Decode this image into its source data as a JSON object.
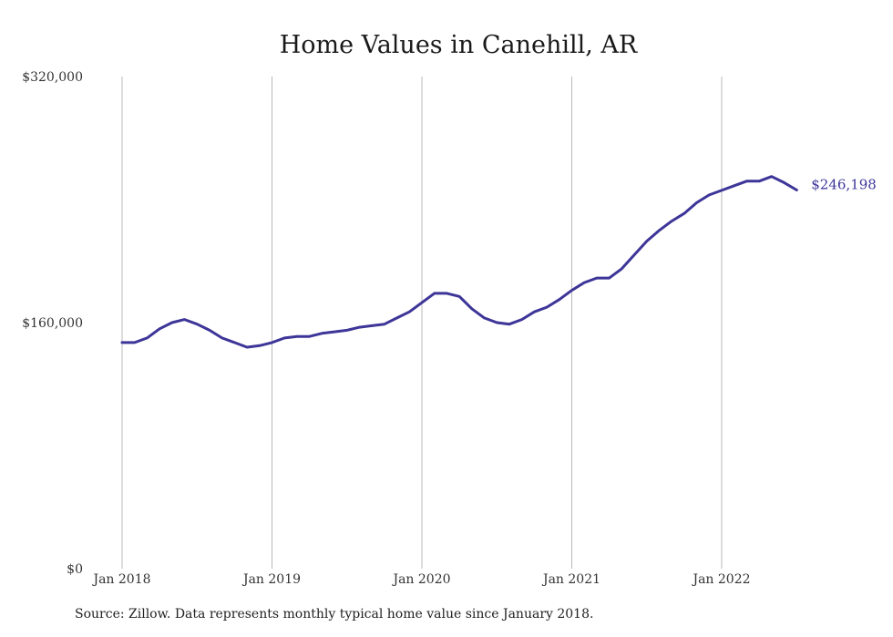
{
  "chart_data": {
    "type": "line",
    "title": "Home Values in Canehill, AR",
    "xlabel": "",
    "ylabel": "",
    "ylim": [
      0,
      320000
    ],
    "y_ticks": [
      {
        "value": 0,
        "label": "$0"
      },
      {
        "value": 160000,
        "label": "$160,000"
      },
      {
        "value": 320000,
        "label": "$320,000"
      }
    ],
    "x_ticks": [
      {
        "month_index": 0,
        "label": "Jan 2018"
      },
      {
        "month_index": 12,
        "label": "Jan 2019"
      },
      {
        "month_index": 24,
        "label": "Jan 2020"
      },
      {
        "month_index": 36,
        "label": "Jan 2021"
      },
      {
        "month_index": 48,
        "label": "Jan 2022"
      }
    ],
    "grid": "vertical",
    "series": [
      {
        "start": "2018-01",
        "frequency": "monthly",
        "color": "#3d3598",
        "end_label": "$246,198",
        "values": [
          147000,
          147000,
          150000,
          156000,
          160000,
          162000,
          159000,
          155000,
          150000,
          147000,
          144000,
          145000,
          147000,
          150000,
          151000,
          151000,
          153000,
          154000,
          155000,
          157000,
          158000,
          159000,
          163000,
          167000,
          173000,
          179000,
          179000,
          177000,
          169000,
          163000,
          160000,
          159000,
          162000,
          167000,
          170000,
          175000,
          181000,
          186000,
          189000,
          189000,
          195000,
          204000,
          213000,
          220000,
          226000,
          231000,
          238000,
          243000,
          246000,
          249000,
          252000,
          252000,
          255000,
          251000,
          246198
        ]
      }
    ]
  },
  "source": "Source: Zillow. Data represents monthly typical home value since January 2018."
}
